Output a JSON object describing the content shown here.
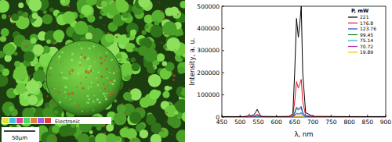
{
  "chart_data": {
    "type": "line",
    "x_label": "λ, nm",
    "y_label": "Intensity, a. u.",
    "legend_title": "P, mW",
    "legend": "upper right",
    "grid": false,
    "xlim": [
      450,
      900
    ],
    "xticks": [
      450,
      500,
      550,
      600,
      650,
      700,
      750,
      800,
      850,
      900
    ],
    "ylim": [
      0,
      500000
    ],
    "yticks": [
      0,
      100000,
      200000,
      300000,
      400000,
      500000
    ],
    "x": [
      450,
      510,
      520,
      525,
      530,
      538,
      543,
      547,
      551,
      558,
      600,
      635,
      645,
      650,
      655,
      660,
      664,
      668,
      672,
      680,
      700,
      800,
      900
    ],
    "series": [
      {
        "name": "221",
        "color": "#000000",
        "values": [
          2000,
          2000,
          4000,
          12000,
          5000,
          10000,
          22000,
          35000,
          20000,
          3000,
          2000,
          3000,
          15000,
          200000,
          445000,
          360000,
          420000,
          500000,
          200000,
          20000,
          3000,
          2000,
          2000
        ]
      },
      {
        "name": "176.8",
        "color": "#e8141c",
        "values": [
          1000,
          1000,
          2000,
          5000,
          2000,
          4000,
          9000,
          13000,
          8000,
          1500,
          1000,
          1500,
          6000,
          70000,
          160000,
          130000,
          150000,
          170000,
          70000,
          8000,
          1500,
          1000,
          1000
        ]
      },
      {
        "name": "123.76",
        "color": "#1f3fd8",
        "values": [
          500,
          500,
          1000,
          2500,
          1000,
          2000,
          4000,
          6000,
          4000,
          800,
          500,
          800,
          2500,
          20000,
          45000,
          38000,
          42000,
          48000,
          20000,
          3000,
          800,
          500,
          500
        ]
      },
      {
        "name": "99.45",
        "color": "#1d7a2a",
        "values": [
          500,
          500,
          900,
          2000,
          900,
          1800,
          3500,
          5000,
          3500,
          700,
          500,
          700,
          2000,
          17000,
          38000,
          32000,
          36000,
          41000,
          17000,
          2500,
          700,
          500,
          500
        ]
      },
      {
        "name": "75.14",
        "color": "#2aa8c8",
        "values": [
          300,
          300,
          500,
          1000,
          500,
          900,
          1800,
          2500,
          1800,
          400,
          300,
          400,
          1000,
          8000,
          18000,
          15000,
          17000,
          20000,
          8000,
          1200,
          400,
          300,
          300
        ]
      },
      {
        "name": "70.72",
        "color": "#b02ab0",
        "values": [
          300,
          300,
          400,
          900,
          400,
          800,
          1500,
          2200,
          1500,
          300,
          300,
          300,
          900,
          7000,
          15000,
          13000,
          14000,
          17000,
          7000,
          1000,
          300,
          300,
          300
        ]
      },
      {
        "name": "19.89",
        "color": "#f2c21a",
        "values": [
          100,
          100,
          150,
          300,
          150,
          250,
          500,
          700,
          500,
          150,
          100,
          150,
          300,
          2000,
          4000,
          3500,
          3800,
          4500,
          2000,
          300,
          150,
          100,
          100
        ]
      }
    ]
  },
  "micrograph": {
    "legend_label": "Electronic",
    "scale_bar": "50μm"
  }
}
